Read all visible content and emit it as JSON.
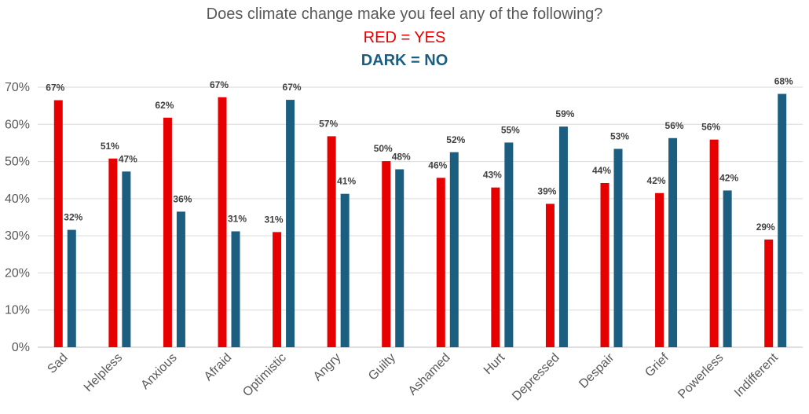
{
  "chart_data": {
    "type": "bar",
    "title": "Does climate change make you feel any of the following?",
    "subtitle_lines": [
      "RED = YES",
      "DARK = NO"
    ],
    "categories": [
      "Sad",
      "Helpless",
      "Anxious",
      "Afraid",
      "Optimistic",
      "Angry",
      "Guilty",
      "Ashamed",
      "Hurt",
      "Depressed",
      "Despair",
      "Grief",
      "Powerless",
      "Indifferent"
    ],
    "series": [
      {
        "color": "#e60000",
        "values": [
          66.5,
          50.8,
          61.8,
          67.3,
          31,
          56.8,
          50.1,
          45.6,
          43,
          38.6,
          44.2,
          41.5,
          55.9,
          29
        ],
        "labels": [
          "67%",
          "51%",
          "62%",
          "67%",
          "31%",
          "57%",
          "50%",
          "46%",
          "43%",
          "39%",
          "44%",
          "42%",
          "56%",
          "29%"
        ]
      },
      {
        "color": "#1b5e80",
        "values": [
          31.6,
          47.3,
          36.5,
          31.2,
          66.6,
          41.3,
          47.9,
          52.5,
          55.1,
          59.4,
          53.4,
          56.3,
          42.2,
          68.2
        ],
        "labels": [
          "32%",
          "47%",
          "36%",
          "31%",
          "67%",
          "41%",
          "48%",
          "52%",
          "55%",
          "59%",
          "53%",
          "56%",
          "42%",
          "68%"
        ]
      }
    ],
    "ylim": [
      0,
      70
    ],
    "yticks": [
      "0%",
      "10%",
      "20%",
      "30%",
      "40%",
      "50%",
      "60%",
      "70%"
    ],
    "grid": true,
    "legend": "none"
  }
}
